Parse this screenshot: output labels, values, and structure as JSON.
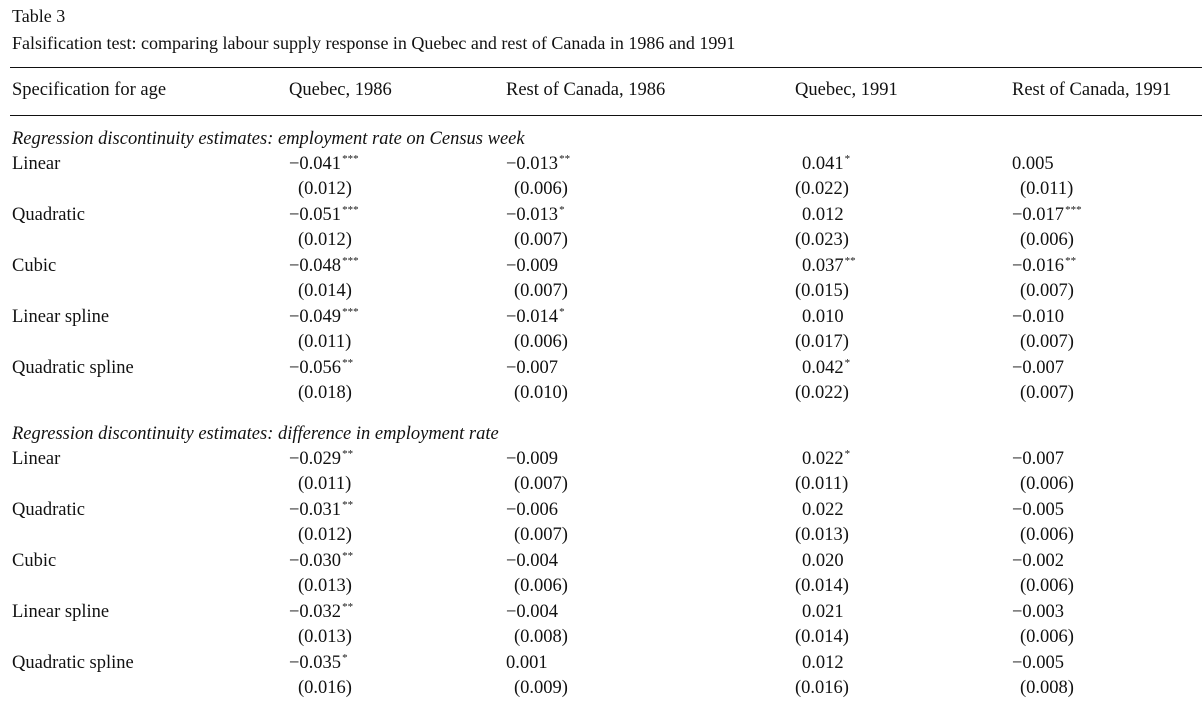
{
  "table": {
    "label": "Table 3",
    "caption": "Falsification test: comparing labour supply response in Quebec and rest of Canada in 1986 and 1991",
    "headers": [
      "Specification for age",
      "Quebec, 1986",
      "Rest of Canada, 1986",
      "Quebec, 1991",
      "Rest of Canada, 1991"
    ],
    "sections": [
      {
        "title": "Regression discontinuity estimates: employment rate on Census week",
        "rows": [
          {
            "label": "Linear",
            "cells": [
              {
                "value": "−0.041",
                "stars": "***",
                "se": "(0.012)"
              },
              {
                "value": "−0.013",
                "stars": "**",
                "se": "(0.006)"
              },
              {
                "value": "0.041",
                "stars": "*",
                "se": "(0.022)"
              },
              {
                "value": "0.005",
                "stars": "",
                "se": "(0.011)"
              }
            ]
          },
          {
            "label": "Quadratic",
            "cells": [
              {
                "value": "−0.051",
                "stars": "***",
                "se": "(0.012)"
              },
              {
                "value": "−0.013",
                "stars": "*",
                "se": "(0.007)"
              },
              {
                "value": "0.012",
                "stars": "",
                "se": "(0.023)"
              },
              {
                "value": "−0.017",
                "stars": "***",
                "se": "(0.006)"
              }
            ]
          },
          {
            "label": "Cubic",
            "cells": [
              {
                "value": "−0.048",
                "stars": "***",
                "se": "(0.014)"
              },
              {
                "value": "−0.009",
                "stars": "",
                "se": "(0.007)"
              },
              {
                "value": "0.037",
                "stars": "**",
                "se": "(0.015)"
              },
              {
                "value": "−0.016",
                "stars": "**",
                "se": "(0.007)"
              }
            ]
          },
          {
            "label": "Linear spline",
            "cells": [
              {
                "value": "−0.049",
                "stars": "***",
                "se": "(0.011)"
              },
              {
                "value": "−0.014",
                "stars": "*",
                "se": "(0.006)"
              },
              {
                "value": "0.010",
                "stars": "",
                "se": "(0.017)"
              },
              {
                "value": "−0.010",
                "stars": "",
                "se": "(0.007)"
              }
            ]
          },
          {
            "label": "Quadratic spline",
            "cells": [
              {
                "value": "−0.056",
                "stars": "**",
                "se": "(0.018)"
              },
              {
                "value": "−0.007",
                "stars": "",
                "se": "(0.010)"
              },
              {
                "value": "0.042",
                "stars": "*",
                "se": "(0.022)"
              },
              {
                "value": "−0.007",
                "stars": "",
                "se": "(0.007)"
              }
            ]
          }
        ]
      },
      {
        "title": "Regression discontinuity estimates: difference in employment rate",
        "rows": [
          {
            "label": "Linear",
            "cells": [
              {
                "value": "−0.029",
                "stars": "**",
                "se": "(0.011)"
              },
              {
                "value": "−0.009",
                "stars": "",
                "se": "(0.007)"
              },
              {
                "value": "0.022",
                "stars": "*",
                "se": "(0.011)"
              },
              {
                "value": "−0.007",
                "stars": "",
                "se": "(0.006)"
              }
            ]
          },
          {
            "label": "Quadratic",
            "cells": [
              {
                "value": "−0.031",
                "stars": "**",
                "se": "(0.012)"
              },
              {
                "value": "−0.006",
                "stars": "",
                "se": "(0.007)"
              },
              {
                "value": "0.022",
                "stars": "",
                "se": "(0.013)"
              },
              {
                "value": "−0.005",
                "stars": "",
                "se": "(0.006)"
              }
            ]
          },
          {
            "label": "Cubic",
            "cells": [
              {
                "value": "−0.030",
                "stars": "**",
                "se": "(0.013)"
              },
              {
                "value": "−0.004",
                "stars": "",
                "se": "(0.006)"
              },
              {
                "value": "0.020",
                "stars": "",
                "se": "(0.014)"
              },
              {
                "value": "−0.002",
                "stars": "",
                "se": "(0.006)"
              }
            ]
          },
          {
            "label": "Linear spline",
            "cells": [
              {
                "value": "−0.032",
                "stars": "**",
                "se": "(0.013)"
              },
              {
                "value": "−0.004",
                "stars": "",
                "se": "(0.008)"
              },
              {
                "value": "0.021",
                "stars": "",
                "se": "(0.014)"
              },
              {
                "value": "−0.003",
                "stars": "",
                "se": "(0.006)"
              }
            ]
          },
          {
            "label": "Quadratic spline",
            "cells": [
              {
                "value": "−0.035",
                "stars": "*",
                "se": "(0.016)"
              },
              {
                "value": "0.001",
                "stars": "",
                "se": "(0.009)"
              },
              {
                "value": "0.012",
                "stars": "",
                "se": "(0.016)"
              },
              {
                "value": "−0.005",
                "stars": "",
                "se": "(0.008)"
              }
            ]
          }
        ]
      }
    ]
  }
}
